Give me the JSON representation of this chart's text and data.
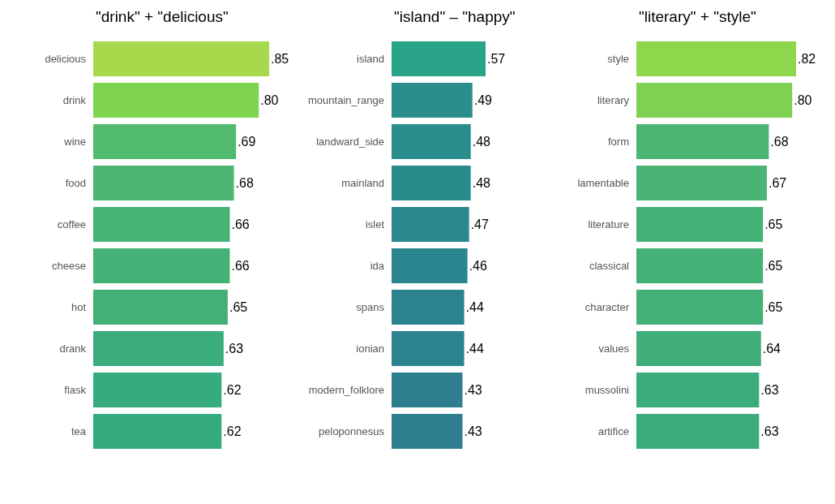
{
  "chart_data": [
    {
      "type": "bar",
      "orientation": "horizontal",
      "title": "\"drink\" + \"delicious\"",
      "categories": [
        "delicious",
        "drink",
        "wine",
        "food",
        "coffee",
        "cheese",
        "hot",
        "drank",
        "flask",
        "tea"
      ],
      "values": [
        0.85,
        0.8,
        0.69,
        0.68,
        0.66,
        0.66,
        0.65,
        0.63,
        0.62,
        0.62
      ],
      "value_labels": [
        ".85",
        ".80",
        ".69",
        ".68",
        ".66",
        ".66",
        ".65",
        ".63",
        ".62",
        ".62"
      ],
      "colors": [
        "#a6d94b",
        "#7ed34f",
        "#52ba6e",
        "#4db673",
        "#48b376",
        "#46b177",
        "#44b078",
        "#3bac7c",
        "#36ab7d",
        "#34aa7e"
      ]
    },
    {
      "type": "bar",
      "orientation": "horizontal",
      "title": "\"island\" – \"happy\"",
      "categories": [
        "island",
        "mountain_range",
        "landward_side",
        "mainland",
        "islet",
        "ida",
        "spans",
        "ionian",
        "modern_folklore",
        "peloponnesus"
      ],
      "values": [
        0.57,
        0.49,
        0.48,
        0.48,
        0.47,
        0.46,
        0.44,
        0.44,
        0.43,
        0.43
      ],
      "value_labels": [
        ".57",
        ".49",
        ".48",
        ".48",
        ".47",
        ".46",
        ".44",
        ".44",
        ".43",
        ".43"
      ],
      "colors": [
        "#29a488",
        "#2a8f8c",
        "#2a8c8d",
        "#2a8b8d",
        "#2b888e",
        "#2b858e",
        "#2c828f",
        "#2c828f",
        "#2d7f8f",
        "#2d7f8f"
      ]
    },
    {
      "type": "bar",
      "orientation": "horizontal",
      "title": "\"literary\" + \"style\"",
      "categories": [
        "style",
        "literary",
        "form",
        "lamentable",
        "literature",
        "classical",
        "character",
        "values",
        "mussolini",
        "artifice"
      ],
      "values": [
        0.82,
        0.8,
        0.68,
        0.67,
        0.65,
        0.65,
        0.65,
        0.64,
        0.63,
        0.63
      ],
      "value_labels": [
        ".82",
        ".80",
        ".68",
        ".67",
        ".65",
        ".65",
        ".65",
        ".64",
        ".63",
        ".63"
      ],
      "colors": [
        "#8ed64c",
        "#7fd152",
        "#4cb574",
        "#4ab375",
        "#45b177",
        "#45b177",
        "#44b078",
        "#3fae7a",
        "#3bac7c",
        "#3bac7c"
      ]
    }
  ]
}
